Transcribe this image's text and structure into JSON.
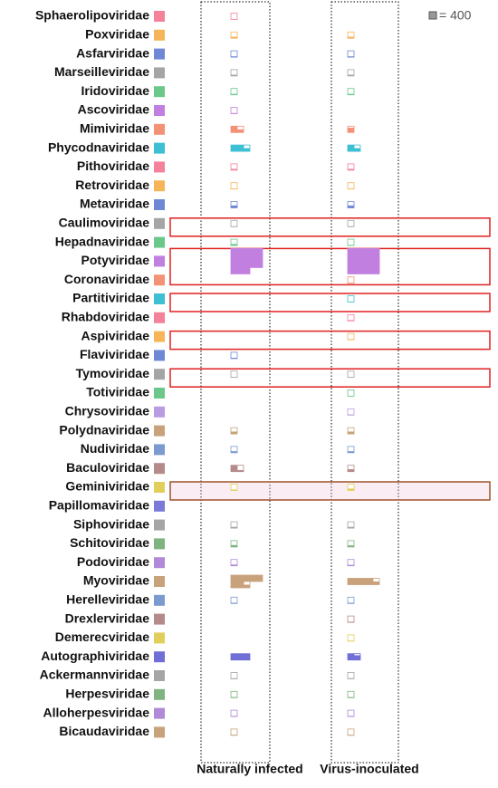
{
  "chart_data": {
    "type": "waffle",
    "unit": {
      "value": 400,
      "label": "= 400"
    },
    "categories": [
      "Sphaerolipoviridae",
      "Poxviridae",
      "Asfarviridae",
      "Marseilleviridae",
      "Iridoviridae",
      "Ascoviridae",
      "Mimiviridae",
      "Phycodnaviridae",
      "Pithoviridae",
      "Retroviridae",
      "Metaviridae",
      "Caulimoviridae",
      "Hepadnaviridae",
      "Potyviridae",
      "Coronaviridae",
      "Partitiviridae",
      "Rhabdoviridae",
      "Aspiviridae",
      "Flaviviridae",
      "Tymoviridae",
      "Totiviridae",
      "Chrysoviridae",
      "Polydnaviridae",
      "Nudiviridae",
      "Baculoviridae",
      "Geminiviridae",
      "Papillomaviridae",
      "Siphoviridae",
      "Schitoviridae",
      "Podoviridae",
      "Myoviridae",
      "Herelleviridae",
      "Drexlerviridae",
      "Demerecviridae",
      "Autographiviridae",
      "Ackermannviridae",
      "Herpesviridae",
      "Alloherpesviridae",
      "Bicaudaviridae"
    ],
    "colors": [
      "#f4829a",
      "#f7b55a",
      "#6f88d6",
      "#a5a5a5",
      "#6cc88a",
      "#c17fe0",
      "#f39277",
      "#3dbfd4",
      "#f4829a",
      "#f7b55a",
      "#6f88d6",
      "#a5a5a5",
      "#6cc88a",
      "#c17fe0",
      "#f39277",
      "#3dbfd4",
      "#f4829a",
      "#f7b55a",
      "#6f88d6",
      "#a5a5a5",
      "#6cc88a",
      "#b89be0",
      "#c8a27a",
      "#7b9bd0",
      "#b58a8a",
      "#e2cf5b",
      "#7a7ad8",
      "#a5a5a5",
      "#7fb37f",
      "#b08ad8",
      "#c8a27a",
      "#7b9bd0",
      "#b58a8a",
      "#e2cf5b",
      "#6f6fd6",
      "#a5a5a5",
      "#7fb37f",
      "#b08ad8",
      "#c8a27a"
    ],
    "series": [
      {
        "name": "Naturally infected",
        "values": [
          20,
          100,
          50,
          80,
          60,
          40,
          600,
          1000,
          80,
          30,
          150,
          30,
          100,
          7200,
          0,
          0,
          0,
          0,
          50,
          20,
          0,
          0,
          150,
          100,
          500,
          60,
          0,
          80,
          120,
          80,
          3000,
          50,
          0,
          0,
          1200,
          40,
          40,
          40,
          40
        ]
      },
      {
        "name": "Virus-inoculated",
        "values": [
          0,
          100,
          50,
          80,
          60,
          0,
          300,
          600,
          80,
          30,
          150,
          30,
          40,
          8000,
          30,
          20,
          50,
          40,
          0,
          20,
          30,
          40,
          150,
          100,
          150,
          120,
          0,
          80,
          100,
          60,
          1800,
          50,
          40,
          40,
          700,
          40,
          40,
          40,
          40
        ]
      }
    ]
  }
}
